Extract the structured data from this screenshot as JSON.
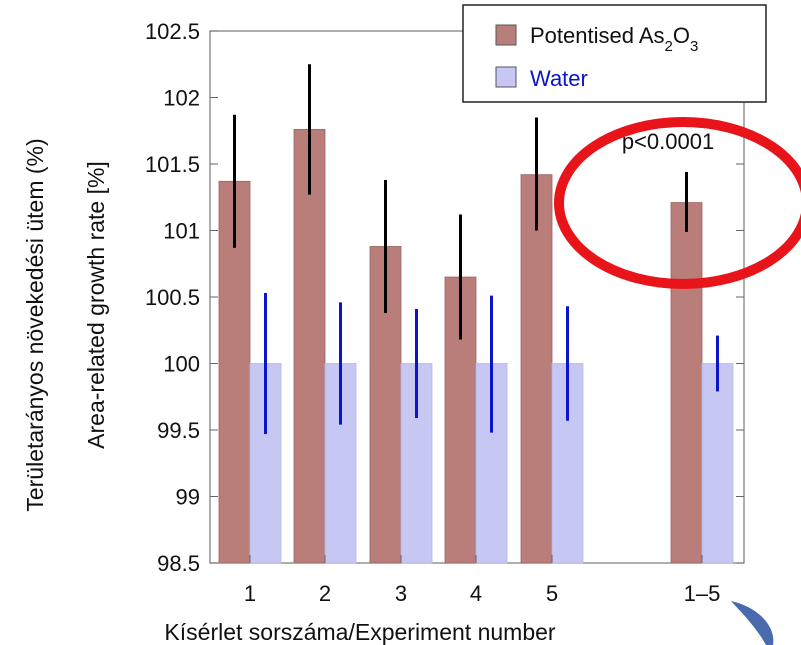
{
  "chart_data": {
    "type": "bar",
    "categories": [
      "1",
      "2",
      "3",
      "4",
      "5",
      "1–5"
    ],
    "series": [
      {
        "name_prefix": "Potentised As",
        "name_sub1": "2",
        "name_mid": "O",
        "name_sub2": "3",
        "values": [
          101.37,
          101.76,
          100.88,
          100.65,
          101.42,
          101.21
        ],
        "error_low": [
          100.87,
          101.27,
          100.38,
          100.18,
          101.0,
          100.99
        ],
        "error_high": [
          101.87,
          102.25,
          101.38,
          101.12,
          101.85,
          101.44
        ],
        "color": "#b97d7a",
        "error_color": "#000000"
      },
      {
        "name": "Water",
        "values": [
          100.0,
          100.0,
          100.0,
          100.0,
          100.0,
          100.0
        ],
        "error_low": [
          99.47,
          99.54,
          99.59,
          99.48,
          99.57,
          99.79
        ],
        "error_high": [
          100.53,
          100.46,
          100.41,
          100.51,
          100.43,
          100.21
        ],
        "color": "#c6c8f3",
        "error_color": "#0a14c8",
        "label_color": "#0a14c8"
      }
    ],
    "ylim": [
      98.5,
      102.5
    ],
    "yticks": [
      "98.5",
      "99",
      "99.5",
      "100",
      "100.5",
      "101",
      "101.5",
      "102",
      "102.5"
    ],
    "ylabel_inner": "Area-related growth rate [%]",
    "ylabel_outer": "Területarányos növekedési ütem (%)",
    "xlabel": "Kísérlet sorszáma/Experiment number",
    "legend_position": "top-right",
    "annotation": "p<0.0001",
    "annotation_circle_color": "#e8141a",
    "grid": false
  }
}
